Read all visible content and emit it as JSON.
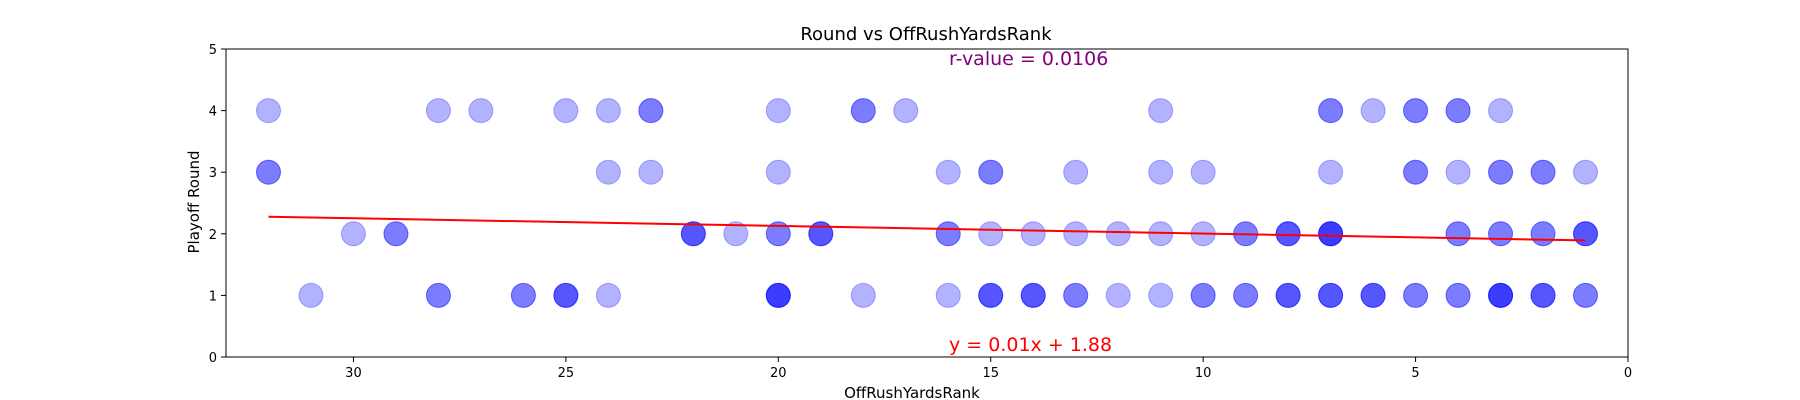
{
  "chart_data": {
    "type": "scatter",
    "title": "Round vs OffRushYardsRank",
    "xlabel": "OffRushYardsRank",
    "ylabel": "Playoff Round",
    "xlim": [
      33,
      0
    ],
    "ylim": [
      0,
      5
    ],
    "x_axis_inverted": true,
    "x_ticks": [
      30,
      25,
      20,
      15,
      10,
      5,
      0
    ],
    "y_ticks": [
      0,
      1,
      2,
      3,
      4,
      5
    ],
    "grid": false,
    "legend": "none",
    "point_color": "#0000ff",
    "point_alpha": 0.3,
    "points": [
      {
        "x": 32,
        "y": 4
      },
      {
        "x": 28,
        "y": 4
      },
      {
        "x": 27,
        "y": 4
      },
      {
        "x": 25,
        "y": 4
      },
      {
        "x": 24,
        "y": 4
      },
      {
        "x": 23,
        "y": 4
      },
      {
        "x": 23,
        "y": 4
      },
      {
        "x": 20,
        "y": 4
      },
      {
        "x": 18,
        "y": 4
      },
      {
        "x": 18,
        "y": 4
      },
      {
        "x": 17,
        "y": 4
      },
      {
        "x": 11,
        "y": 4
      },
      {
        "x": 7,
        "y": 4
      },
      {
        "x": 7,
        "y": 4
      },
      {
        "x": 6,
        "y": 4
      },
      {
        "x": 5,
        "y": 4
      },
      {
        "x": 5,
        "y": 4
      },
      {
        "x": 4,
        "y": 4
      },
      {
        "x": 4,
        "y": 4
      },
      {
        "x": 3,
        "y": 4
      },
      {
        "x": 32,
        "y": 3
      },
      {
        "x": 32,
        "y": 3
      },
      {
        "x": 24,
        "y": 3
      },
      {
        "x": 23,
        "y": 3
      },
      {
        "x": 20,
        "y": 3
      },
      {
        "x": 16,
        "y": 3
      },
      {
        "x": 15,
        "y": 3
      },
      {
        "x": 15,
        "y": 3
      },
      {
        "x": 13,
        "y": 3
      },
      {
        "x": 11,
        "y": 3
      },
      {
        "x": 10,
        "y": 3
      },
      {
        "x": 7,
        "y": 3
      },
      {
        "x": 5,
        "y": 3
      },
      {
        "x": 5,
        "y": 3
      },
      {
        "x": 4,
        "y": 3
      },
      {
        "x": 3,
        "y": 3
      },
      {
        "x": 3,
        "y": 3
      },
      {
        "x": 2,
        "y": 3
      },
      {
        "x": 2,
        "y": 3
      },
      {
        "x": 1,
        "y": 3
      },
      {
        "x": 30,
        "y": 2
      },
      {
        "x": 29,
        "y": 2
      },
      {
        "x": 29,
        "y": 2
      },
      {
        "x": 22,
        "y": 2
      },
      {
        "x": 22,
        "y": 2
      },
      {
        "x": 22,
        "y": 2
      },
      {
        "x": 21,
        "y": 2
      },
      {
        "x": 20,
        "y": 2
      },
      {
        "x": 20,
        "y": 2
      },
      {
        "x": 19,
        "y": 2
      },
      {
        "x": 19,
        "y": 2
      },
      {
        "x": 19,
        "y": 2
      },
      {
        "x": 16,
        "y": 2
      },
      {
        "x": 16,
        "y": 2
      },
      {
        "x": 15,
        "y": 2
      },
      {
        "x": 14,
        "y": 2
      },
      {
        "x": 13,
        "y": 2
      },
      {
        "x": 12,
        "y": 2
      },
      {
        "x": 11,
        "y": 2
      },
      {
        "x": 10,
        "y": 2
      },
      {
        "x": 9,
        "y": 2
      },
      {
        "x": 9,
        "y": 2
      },
      {
        "x": 8,
        "y": 2
      },
      {
        "x": 8,
        "y": 2
      },
      {
        "x": 8,
        "y": 2
      },
      {
        "x": 7,
        "y": 2
      },
      {
        "x": 7,
        "y": 2
      },
      {
        "x": 7,
        "y": 2
      },
      {
        "x": 7,
        "y": 2
      },
      {
        "x": 4,
        "y": 2
      },
      {
        "x": 4,
        "y": 2
      },
      {
        "x": 3,
        "y": 2
      },
      {
        "x": 3,
        "y": 2
      },
      {
        "x": 2,
        "y": 2
      },
      {
        "x": 2,
        "y": 2
      },
      {
        "x": 1,
        "y": 2
      },
      {
        "x": 1,
        "y": 2
      },
      {
        "x": 1,
        "y": 2
      },
      {
        "x": 31,
        "y": 1
      },
      {
        "x": 28,
        "y": 1
      },
      {
        "x": 28,
        "y": 1
      },
      {
        "x": 26,
        "y": 1
      },
      {
        "x": 26,
        "y": 1
      },
      {
        "x": 25,
        "y": 1
      },
      {
        "x": 25,
        "y": 1
      },
      {
        "x": 25,
        "y": 1
      },
      {
        "x": 24,
        "y": 1
      },
      {
        "x": 20,
        "y": 1
      },
      {
        "x": 20,
        "y": 1
      },
      {
        "x": 20,
        "y": 1
      },
      {
        "x": 20,
        "y": 1
      },
      {
        "x": 18,
        "y": 1
      },
      {
        "x": 16,
        "y": 1
      },
      {
        "x": 15,
        "y": 1
      },
      {
        "x": 15,
        "y": 1
      },
      {
        "x": 15,
        "y": 1
      },
      {
        "x": 14,
        "y": 1
      },
      {
        "x": 14,
        "y": 1
      },
      {
        "x": 14,
        "y": 1
      },
      {
        "x": 13,
        "y": 1
      },
      {
        "x": 13,
        "y": 1
      },
      {
        "x": 12,
        "y": 1
      },
      {
        "x": 11,
        "y": 1
      },
      {
        "x": 10,
        "y": 1
      },
      {
        "x": 10,
        "y": 1
      },
      {
        "x": 9,
        "y": 1
      },
      {
        "x": 9,
        "y": 1
      },
      {
        "x": 8,
        "y": 1
      },
      {
        "x": 8,
        "y": 1
      },
      {
        "x": 8,
        "y": 1
      },
      {
        "x": 7,
        "y": 1
      },
      {
        "x": 7,
        "y": 1
      },
      {
        "x": 7,
        "y": 1
      },
      {
        "x": 6,
        "y": 1
      },
      {
        "x": 6,
        "y": 1
      },
      {
        "x": 6,
        "y": 1
      },
      {
        "x": 5,
        "y": 1
      },
      {
        "x": 5,
        "y": 1
      },
      {
        "x": 4,
        "y": 1
      },
      {
        "x": 4,
        "y": 1
      },
      {
        "x": 3,
        "y": 1
      },
      {
        "x": 3,
        "y": 1
      },
      {
        "x": 3,
        "y": 1
      },
      {
        "x": 3,
        "y": 1
      },
      {
        "x": 2,
        "y": 1
      },
      {
        "x": 2,
        "y": 1
      },
      {
        "x": 2,
        "y": 1
      },
      {
        "x": 1,
        "y": 1
      },
      {
        "x": 1,
        "y": 1
      }
    ],
    "regression": {
      "x_range": [
        32,
        1
      ],
      "slope": 0.0124,
      "intercept": 1.88,
      "color": "#ff0000",
      "equation_label": "y = 0.01x + 1.88",
      "equation_color": "#ff0000"
    },
    "annotation": {
      "text": "r-value = 0.0106",
      "color": "#800080"
    }
  }
}
